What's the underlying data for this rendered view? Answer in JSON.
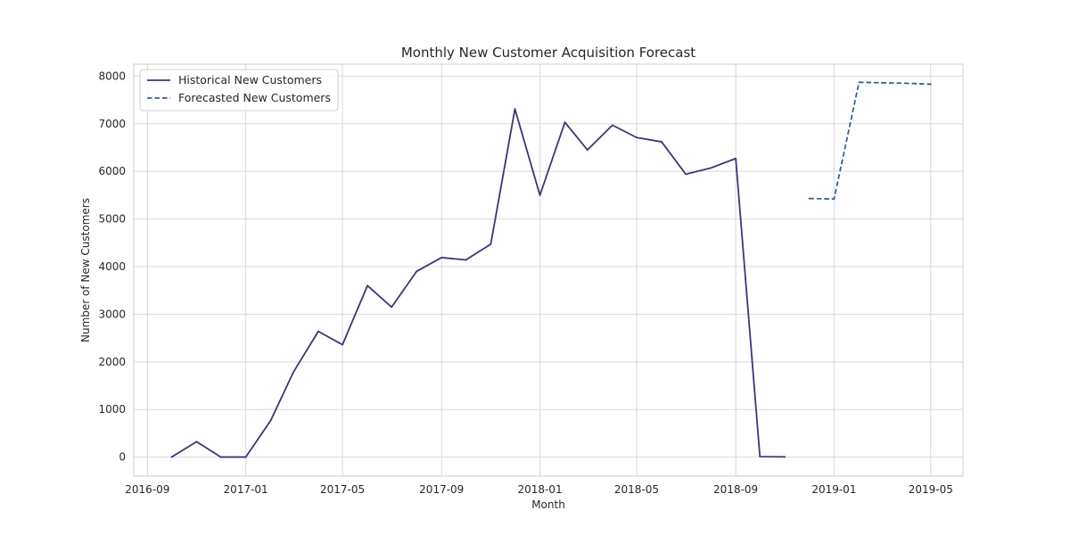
{
  "chart_data": {
    "type": "line",
    "title": "Monthly New Customer Acquisition Forecast",
    "xlabel": "Month",
    "ylabel": "Number of New Customers",
    "xlim": [
      "2016-08-15",
      "2019-06-10"
    ],
    "ylim": [
      -400,
      8250
    ],
    "x_ticks": [
      "2016-09-01",
      "2017-01-01",
      "2017-05-01",
      "2017-09-01",
      "2018-01-01",
      "2018-05-01",
      "2018-09-01",
      "2019-01-01",
      "2019-05-01"
    ],
    "x_tick_labels": [
      "2016-09",
      "2017-01",
      "2017-05",
      "2017-09",
      "2018-01",
      "2018-05",
      "2018-09",
      "2019-01",
      "2019-05"
    ],
    "y_ticks": [
      0,
      1000,
      2000,
      3000,
      4000,
      5000,
      6000,
      7000,
      8000
    ],
    "y_tick_labels": [
      "0",
      "1000",
      "2000",
      "3000",
      "4000",
      "5000",
      "6000",
      "7000",
      "8000"
    ],
    "grid": true,
    "legend_position": "top-left",
    "series": [
      {
        "name": "Historical New Customers",
        "style": "solid",
        "color": "#3b3776",
        "x": [
          "2016-10-01",
          "2016-11-01",
          "2016-12-01",
          "2017-01-01",
          "2017-02-01",
          "2017-03-01",
          "2017-04-01",
          "2017-05-01",
          "2017-06-01",
          "2017-07-01",
          "2017-08-01",
          "2017-09-01",
          "2017-10-01",
          "2017-11-01",
          "2017-12-01",
          "2018-01-01",
          "2018-02-01",
          "2018-03-01",
          "2018-04-01",
          "2018-05-01",
          "2018-06-01",
          "2018-07-01",
          "2018-08-01",
          "2018-09-01",
          "2018-10-01",
          "2018-11-01"
        ],
        "y": [
          1,
          324,
          1,
          1,
          770,
          1780,
          2640,
          2360,
          3600,
          3150,
          3900,
          4190,
          4140,
          4470,
          7310,
          5500,
          7030,
          6450,
          6970,
          6710,
          6620,
          5940,
          6070,
          6270,
          10,
          5
        ]
      },
      {
        "name": "Forecasted New Customers",
        "style": "dashed",
        "color": "#3a5f8f",
        "x": [
          "2018-12-01",
          "2019-01-01",
          "2019-02-01",
          "2019-03-01",
          "2019-04-01",
          "2019-05-01"
        ],
        "y": [
          5430,
          5420,
          7870,
          7860,
          7850,
          7830
        ]
      }
    ]
  }
}
